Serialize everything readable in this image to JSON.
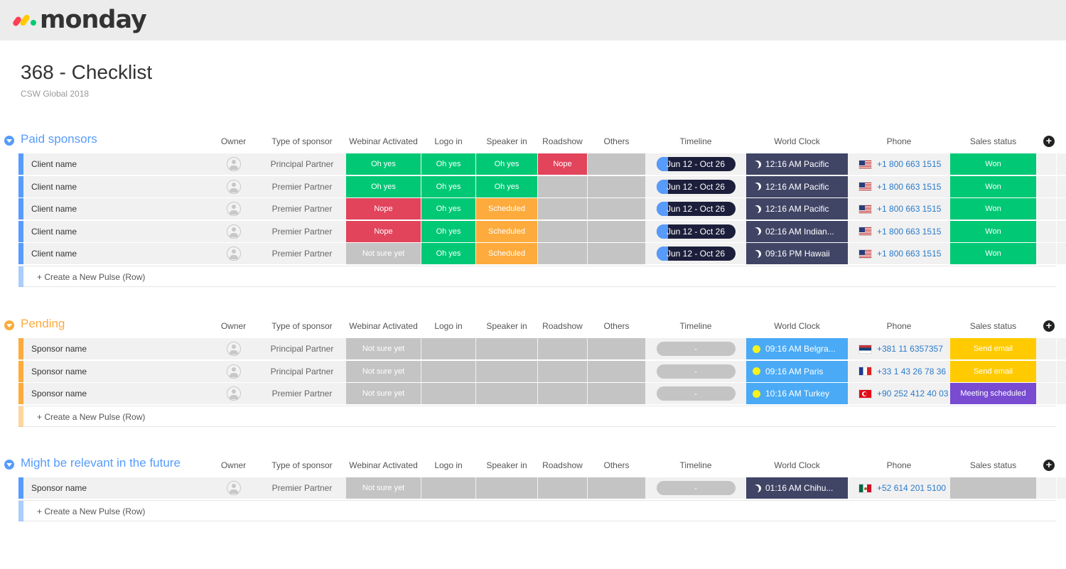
{
  "app": {
    "logo_text": "monday"
  },
  "board": {
    "title": "368 - Checklist",
    "subtitle": "CSW Global 2018"
  },
  "columns": {
    "owner": "Owner",
    "type": "Type of sponsor",
    "webinar": "Webinar Activated",
    "logo": "Logo in",
    "speaker": "Speaker in",
    "roadshow": "Roadshow",
    "others": "Others",
    "timeline": "Timeline",
    "clock": "World Clock",
    "phone": "Phone",
    "sales": "Sales status"
  },
  "new_row_label": "+ Create a New Pulse (Row)",
  "colors": {
    "green": "#00c875",
    "red": "#e2445c",
    "orange": "#fdab3d",
    "grey": "#c4c4c4",
    "blue": "#579bfc",
    "amber": "#ffcb00",
    "purple": "#784bd1",
    "navy": "#404565",
    "sky": "#4aaaf5"
  },
  "groups": [
    {
      "title": "Paid sponsors",
      "color": "#579bfc",
      "rows": [
        {
          "name": "Client name",
          "type": "Principal Partner",
          "webinar": {
            "label": "Oh yes",
            "color": "green"
          },
          "logo": {
            "label": "Oh yes",
            "color": "green"
          },
          "speaker": {
            "label": "Oh yes",
            "color": "green"
          },
          "roadshow": {
            "label": "Nope",
            "color": "red"
          },
          "others": {
            "label": "",
            "color": "grey"
          },
          "timeline": {
            "label": "Jun 12 - Oct 26",
            "progress": 0.15
          },
          "clock": {
            "label": "12:16 AM Pacific",
            "icon": "moon-icon",
            "color": "navy"
          },
          "phone": {
            "number": "+1 800 663 1515",
            "flag": "us"
          },
          "sales": {
            "label": "Won",
            "color": "green"
          }
        },
        {
          "name": "Client name",
          "type": "Premier Partner",
          "webinar": {
            "label": "Oh yes",
            "color": "green"
          },
          "logo": {
            "label": "Oh yes",
            "color": "green"
          },
          "speaker": {
            "label": "Oh yes",
            "color": "green"
          },
          "roadshow": {
            "label": "",
            "color": "grey"
          },
          "others": {
            "label": "",
            "color": "grey"
          },
          "timeline": {
            "label": "Jun 12 - Oct 26",
            "progress": 0.15
          },
          "clock": {
            "label": "12:16 AM Pacific",
            "icon": "moon-icon",
            "color": "navy"
          },
          "phone": {
            "number": "+1 800 663 1515",
            "flag": "us"
          },
          "sales": {
            "label": "Won",
            "color": "green"
          }
        },
        {
          "name": "Client name",
          "type": "Premier Partner",
          "webinar": {
            "label": "Nope",
            "color": "red"
          },
          "logo": {
            "label": "Oh yes",
            "color": "green"
          },
          "speaker": {
            "label": "Scheduled",
            "color": "orange"
          },
          "roadshow": {
            "label": "",
            "color": "grey"
          },
          "others": {
            "label": "",
            "color": "grey"
          },
          "timeline": {
            "label": "Jun 12 - Oct 26",
            "progress": 0.15
          },
          "clock": {
            "label": "12:16 AM Pacific",
            "icon": "moon-icon",
            "color": "navy"
          },
          "phone": {
            "number": "+1 800 663 1515",
            "flag": "us"
          },
          "sales": {
            "label": "Won",
            "color": "green"
          }
        },
        {
          "name": "Client name",
          "type": "Premier Partner",
          "webinar": {
            "label": "Nope",
            "color": "red"
          },
          "logo": {
            "label": "Oh yes",
            "color": "green"
          },
          "speaker": {
            "label": "Scheduled",
            "color": "orange"
          },
          "roadshow": {
            "label": "",
            "color": "grey"
          },
          "others": {
            "label": "",
            "color": "grey"
          },
          "timeline": {
            "label": "Jun 12 - Oct 26",
            "progress": 0.15
          },
          "clock": {
            "label": "02:16 AM Indian...",
            "icon": "moon-icon",
            "color": "navy"
          },
          "phone": {
            "number": "+1 800 663 1515",
            "flag": "us"
          },
          "sales": {
            "label": "Won",
            "color": "green"
          }
        },
        {
          "name": "Client name",
          "type": "Premier Partner",
          "webinar": {
            "label": "Not sure yet",
            "color": "grey"
          },
          "logo": {
            "label": "Oh yes",
            "color": "green"
          },
          "speaker": {
            "label": "Scheduled",
            "color": "orange"
          },
          "roadshow": {
            "label": "",
            "color": "grey"
          },
          "others": {
            "label": "",
            "color": "grey"
          },
          "timeline": {
            "label": "Jun 12 - Oct 26",
            "progress": 0.15
          },
          "clock": {
            "label": "09:16 PM Hawaii",
            "icon": "moon-icon",
            "color": "navy"
          },
          "phone": {
            "number": "+1 800 663 1515",
            "flag": "us"
          },
          "sales": {
            "label": "Won",
            "color": "green"
          }
        }
      ]
    },
    {
      "title": "Pending",
      "color": "#fdab3d",
      "rows": [
        {
          "name": "Sponsor name",
          "type": "Principal Partner",
          "webinar": {
            "label": "Not sure yet",
            "color": "grey"
          },
          "logo": {
            "label": "",
            "color": "grey"
          },
          "speaker": {
            "label": "",
            "color": "grey"
          },
          "roadshow": {
            "label": "",
            "color": "grey"
          },
          "others": {
            "label": "",
            "color": "grey"
          },
          "timeline": {
            "label": "-",
            "progress": 0
          },
          "clock": {
            "label": "09:16 AM Belgra...",
            "icon": "sun-icon",
            "color": "sky"
          },
          "phone": {
            "number": "+381 11 6357357",
            "flag": "rs"
          },
          "sales": {
            "label": "Send email",
            "color": "amber"
          }
        },
        {
          "name": "Sponsor name",
          "type": "Principal Partner",
          "webinar": {
            "label": "Not sure yet",
            "color": "grey"
          },
          "logo": {
            "label": "",
            "color": "grey"
          },
          "speaker": {
            "label": "",
            "color": "grey"
          },
          "roadshow": {
            "label": "",
            "color": "grey"
          },
          "others": {
            "label": "",
            "color": "grey"
          },
          "timeline": {
            "label": "-",
            "progress": 0
          },
          "clock": {
            "label": "09:16 AM Paris",
            "icon": "sun-icon",
            "color": "sky"
          },
          "phone": {
            "number": "+33 1 43 26 78 36",
            "flag": "fr"
          },
          "sales": {
            "label": "Send email",
            "color": "amber"
          }
        },
        {
          "name": "Sponsor name",
          "type": "Premier Partner",
          "webinar": {
            "label": "Not sure yet",
            "color": "grey"
          },
          "logo": {
            "label": "",
            "color": "grey"
          },
          "speaker": {
            "label": "",
            "color": "grey"
          },
          "roadshow": {
            "label": "",
            "color": "grey"
          },
          "others": {
            "label": "",
            "color": "grey"
          },
          "timeline": {
            "label": "-",
            "progress": 0
          },
          "clock": {
            "label": "10:16 AM Turkey",
            "icon": "sun-icon",
            "color": "sky"
          },
          "phone": {
            "number": "+90 252 412 40 03",
            "flag": "tr"
          },
          "sales": {
            "label": "Meeting scheduled",
            "color": "purple"
          }
        }
      ]
    },
    {
      "title": "Might be relevant in the future",
      "color": "#579bfc",
      "rows": [
        {
          "name": "Sponsor name",
          "type": "Premier Partner",
          "webinar": {
            "label": "Not sure yet",
            "color": "grey"
          },
          "logo": {
            "label": "",
            "color": "grey"
          },
          "speaker": {
            "label": "",
            "color": "grey"
          },
          "roadshow": {
            "label": "",
            "color": "grey"
          },
          "others": {
            "label": "",
            "color": "grey"
          },
          "timeline": {
            "label": "-",
            "progress": 0
          },
          "clock": {
            "label": "01:16 AM Chihu...",
            "icon": "moon-icon",
            "color": "navy"
          },
          "phone": {
            "number": "+52 614 201 5100",
            "flag": "mx"
          },
          "sales": {
            "label": "",
            "color": "grey"
          }
        }
      ]
    }
  ]
}
